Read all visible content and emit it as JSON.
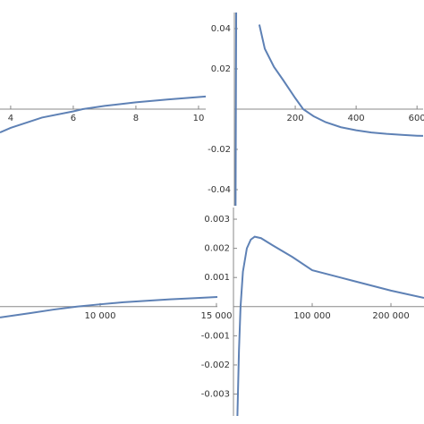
{
  "chart_data": [
    {
      "type": "line",
      "x": [
        3.66,
        4,
        5,
        6,
        6.3,
        7,
        8,
        9,
        10,
        10.23
      ],
      "series": [
        {
          "color": "#5e81b5",
          "values": [
            -0.0116,
            -0.0093,
            -0.0042,
            -0.0011,
            0,
            0.0016,
            0.0034,
            0.0048,
            0.006,
            0.0063
          ]
        }
      ],
      "xlim": [
        3.66,
        10.23
      ],
      "ylim": [
        -0.048,
        0.048
      ],
      "xticks": [
        4,
        6,
        8,
        10
      ]
    },
    {
      "type": "line",
      "x": [
        4,
        6,
        50,
        82,
        100,
        130,
        160,
        200,
        226,
        260,
        300,
        350,
        400,
        450,
        500,
        550,
        600,
        620
      ],
      "series": [
        {
          "color": "#5e81b5",
          "values": [
            -0.048,
            0.048,
            null,
            0.042,
            0.03,
            0.021,
            0.0145,
            0.0055,
            0,
            -0.0035,
            -0.0065,
            -0.009,
            -0.0105,
            -0.0116,
            -0.0123,
            -0.0128,
            -0.0132,
            -0.0133
          ]
        }
      ],
      "xlim": [
        0,
        620
      ],
      "ylim": [
        -0.048,
        0.048
      ],
      "xticks": [
        200,
        400,
        600
      ],
      "yticks": [
        -0.04,
        -0.02,
        0.02,
        0.04
      ]
    },
    {
      "type": "line",
      "x": [
        5690,
        7000,
        8000,
        9000,
        10000,
        11000,
        12000,
        13000,
        14000,
        15040
      ],
      "series": [
        {
          "color": "#5e81b5",
          "values": [
            -0.00037,
            -0.00022,
            -0.0001,
            0,
            8e-05,
            0.00015,
            0.0002,
            0.00025,
            0.00029,
            0.00033
          ]
        }
      ],
      "xlim": [
        5690,
        15040
      ],
      "ylim": [
        -0.00375,
        0.0034
      ],
      "xticks": [
        {
          "value": 10000,
          "label": "10 000"
        },
        {
          "value": 15000,
          "label": "15 000"
        }
      ]
    },
    {
      "type": "line",
      "x": [
        5000,
        7000,
        9000,
        12000,
        17000,
        22000,
        27000,
        35000,
        50000,
        75000,
        100000,
        150000,
        200000,
        242000
      ],
      "series": [
        {
          "color": "#5e81b5",
          "values": [
            -0.00375,
            -0.0015,
            0,
            0.0012,
            0.002,
            0.0023,
            0.0024,
            0.00235,
            0.0021,
            0.0017,
            0.00125,
            0.0009,
            0.00055,
            0.0003
          ]
        }
      ],
      "xlim": [
        0,
        242000
      ],
      "ylim": [
        -0.00375,
        0.0034
      ],
      "xticks": [
        {
          "value": 100000,
          "label": "100 000"
        },
        {
          "value": 200000,
          "label": "200 000"
        }
      ],
      "yticks": [
        -0.003,
        -0.002,
        -0.001,
        0.001,
        0.002,
        0.003
      ]
    }
  ]
}
